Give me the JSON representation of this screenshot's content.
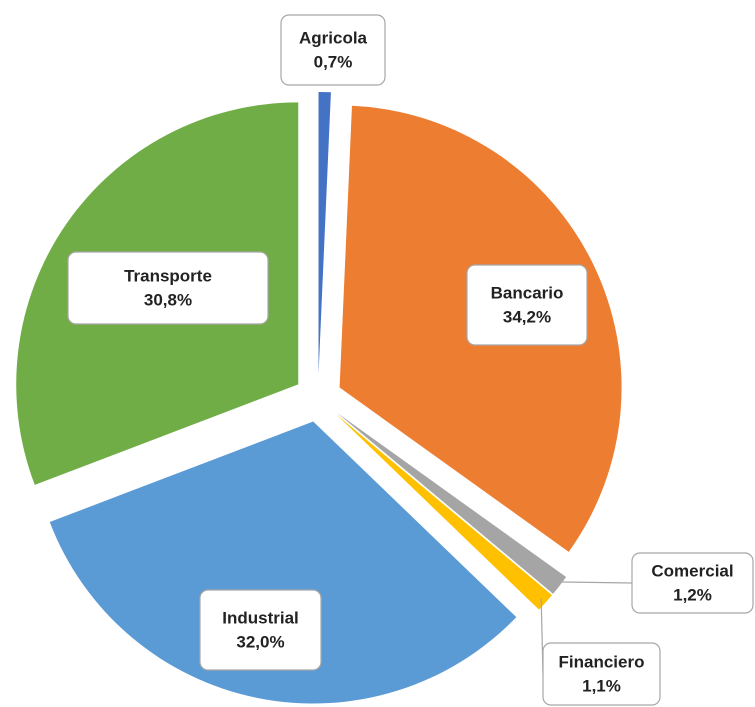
{
  "chart_data": {
    "type": "pie",
    "categories": [
      "Agricola",
      "Bancario",
      "Comercial",
      "Financiero",
      "Industrial",
      "Transporte"
    ],
    "values": [
      0.7,
      34.2,
      1.2,
      1.1,
      32.0,
      30.8
    ],
    "value_labels": [
      "0,7%",
      "34,2%",
      "1,2%",
      "1,1%",
      "32,0%",
      "30,8%"
    ],
    "colors": [
      "#4472c4",
      "#ed7d31",
      "#a5a5a5",
      "#ffc000",
      "#5b9bd5",
      "#70ad47"
    ]
  }
}
